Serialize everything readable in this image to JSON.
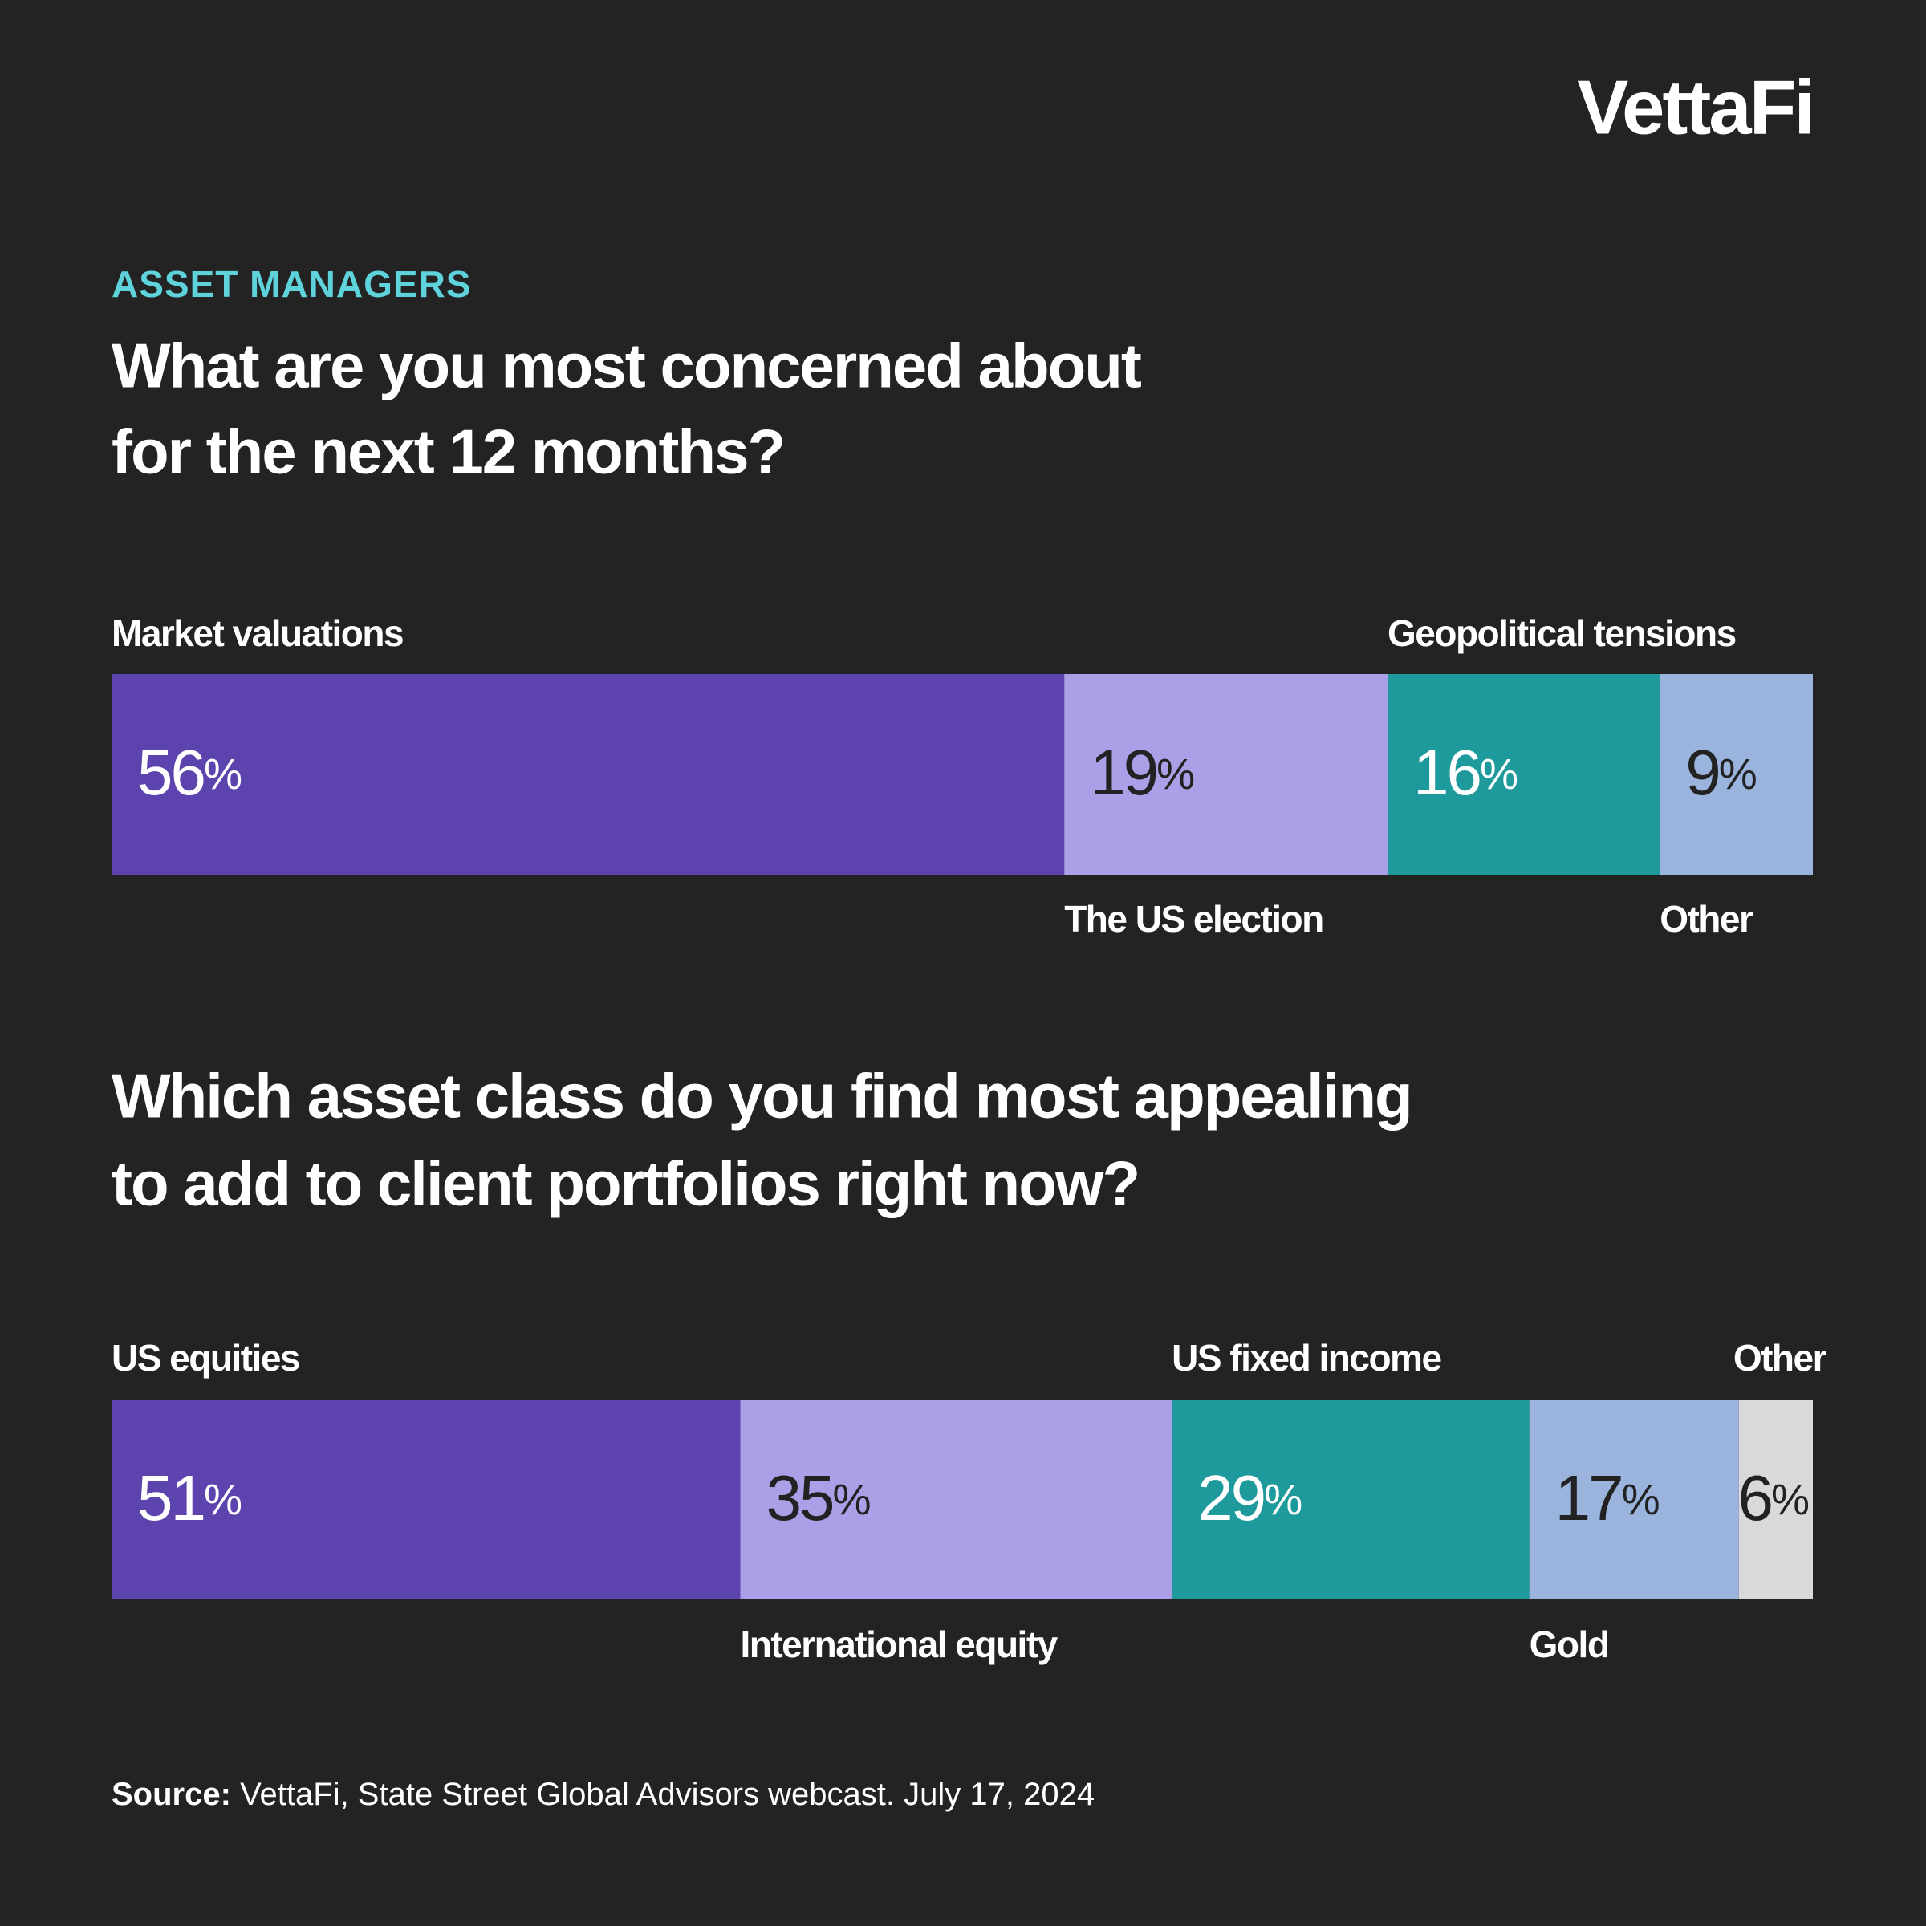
{
  "brand": "VettaFi",
  "kicker": "ASSET MANAGERS",
  "source_label": "Source:",
  "source": "VettaFi, State Street Global Advisors webcast.  July 17, 2024",
  "chart_data": [
    {
      "type": "stacked-bar",
      "title": [
        "What are you most concerned about",
        "for the next 12 months?"
      ],
      "categories": [
        "Market valuations",
        "The US election",
        "Geopolitical tensions",
        "Other"
      ],
      "values": [
        56,
        19,
        16,
        9
      ],
      "value_labels": [
        "56%",
        "19%",
        "16%",
        "9%"
      ],
      "colors": [
        "#5c43ae",
        "#aba0e8",
        "#1e9a9c",
        "#9ab4de"
      ],
      "text_colors": [
        "#ffffff",
        "#222222",
        "#ffffff",
        "#222222"
      ]
    },
    {
      "type": "stacked-bar",
      "title": [
        "Which asset class do you find most appealing",
        "to add to client portfolios right now?"
      ],
      "categories": [
        "US equities",
        "International equity",
        "US fixed income",
        "Gold",
        "Other"
      ],
      "values": [
        51,
        35,
        29,
        17,
        6
      ],
      "value_labels": [
        "51%",
        "35%",
        "29%",
        "17%",
        "6%"
      ],
      "colors": [
        "#5c43ae",
        "#aba0e8",
        "#1e9a9c",
        "#9ab4de",
        "#d9d9d9"
      ],
      "text_colors": [
        "#ffffff",
        "#222222",
        "#ffffff",
        "#222222",
        "#222222"
      ]
    }
  ]
}
